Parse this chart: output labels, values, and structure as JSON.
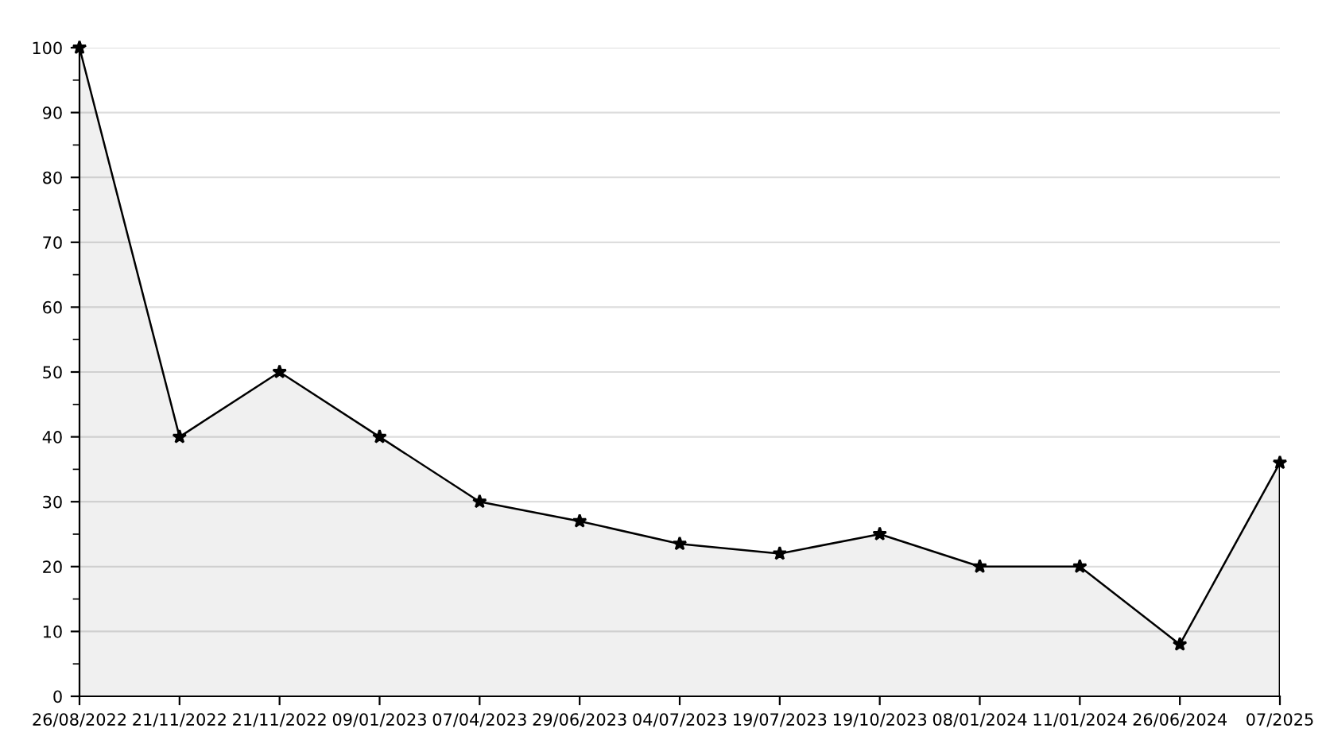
{
  "chart_data": {
    "type": "area",
    "categories": [
      "26/08/2022",
      "21/11/2022",
      "21/11/2022",
      "09/01/2023",
      "07/04/2023",
      "29/06/2023",
      "04/07/2023",
      "19/07/2023",
      "19/10/2023",
      "08/01/2024",
      "11/01/2024",
      "26/06/2024",
      "07/2025"
    ],
    "series": [
      {
        "color": "#000000",
        "values": [
          100,
          40,
          50,
          40,
          30,
          27,
          23.5,
          22,
          25,
          20,
          20,
          8,
          36
        ]
      }
    ],
    "ylim": [
      0,
      100
    ],
    "yticks": [
      0,
      10,
      20,
      30,
      40,
      50,
      60,
      70,
      80,
      90,
      100
    ],
    "grid": "y",
    "marker": "star",
    "line_style": "solid",
    "legend": false
  }
}
